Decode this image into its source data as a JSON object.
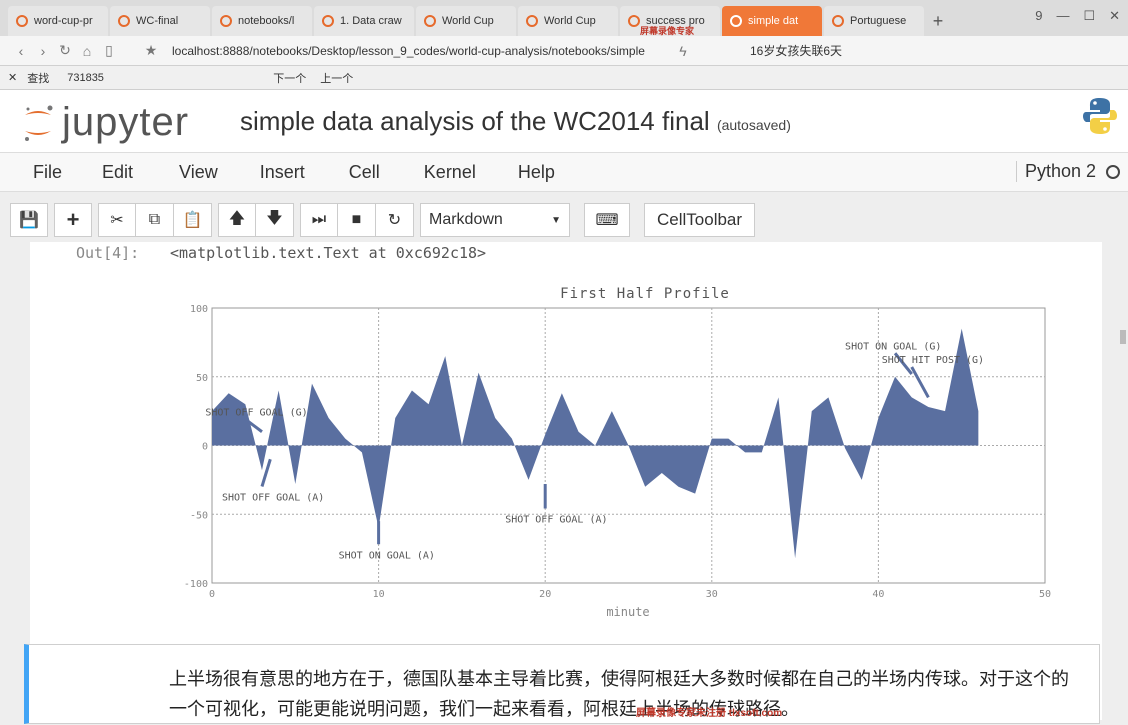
{
  "browser": {
    "tabs": [
      {
        "label": "word-cup-pr"
      },
      {
        "label": "WC-final"
      },
      {
        "label": "notebooks/l"
      },
      {
        "label": "1. Data craw"
      },
      {
        "label": "World Cup"
      },
      {
        "label": "World Cup"
      },
      {
        "label": "success pro"
      },
      {
        "label": "simple dat",
        "active": true
      },
      {
        "label": "Portuguese"
      }
    ],
    "new_tab": "+",
    "window_count": "9",
    "url": "localhost:8888/notebooks/Desktop/lesson_9_codes/world-cup-analysis/notebooks/simple",
    "news": "16岁女孩失联6天",
    "find": {
      "label": "查找",
      "value": "731835",
      "next": "下一个",
      "prev": "上一个"
    }
  },
  "jupyter": {
    "logo": "jupyter",
    "notebook_title": "simple data analysis of the WC2014 final",
    "save_status": "(autosaved)",
    "menu": [
      "File",
      "Edit",
      "View",
      "Insert",
      "Cell",
      "Kernel",
      "Help"
    ],
    "kernel_name": "Python 2",
    "cell_type": "Markdown",
    "cell_toolbar": "CellToolbar"
  },
  "output": {
    "prompt": "Out[4]:",
    "text": "<matplotlib.text.Text at 0xc692c18>"
  },
  "chart_data": {
    "type": "area",
    "title": "First Half Profile",
    "xlabel": "minute",
    "ylabel": "",
    "xlim": [
      0,
      50
    ],
    "ylim": [
      -100,
      100
    ],
    "xticks": [
      "0",
      "10",
      "20",
      "30",
      "40",
      "50"
    ],
    "yticks": [
      "100",
      "50",
      "0",
      "-50",
      "-100"
    ],
    "grid": true,
    "fill_color": "#5a6fa0",
    "x": [
      0,
      1,
      2,
      3,
      4,
      5,
      6,
      7,
      8,
      9,
      10,
      11,
      12,
      13,
      14,
      15,
      16,
      17,
      18,
      19,
      20,
      21,
      22,
      23,
      24,
      25,
      26,
      27,
      28,
      29,
      30,
      31,
      32,
      33,
      34,
      35,
      36,
      37,
      38,
      39,
      40,
      41,
      42,
      43,
      44,
      45,
      46
    ],
    "y": [
      25,
      38,
      30,
      -18,
      40,
      -28,
      45,
      20,
      5,
      -5,
      -60,
      20,
      40,
      30,
      65,
      0,
      53,
      20,
      5,
      -25,
      8,
      38,
      10,
      0,
      25,
      0,
      -30,
      -20,
      -30,
      -35,
      5,
      5,
      -5,
      -5,
      35,
      -82,
      25,
      35,
      -2,
      -25,
      20,
      50,
      35,
      28,
      25,
      85,
      25
    ],
    "annotations": [
      {
        "text": "SHOT ON GOAL (G)",
        "x": 41,
        "y": 70
      },
      {
        "text": "SHOT HIT POST (G)",
        "x": 42,
        "y": 60
      },
      {
        "text": "SHOT OFF GOAL (G)",
        "x": 2,
        "y": 22
      },
      {
        "text": "SHOT OFF GOAL (A)",
        "x": 3,
        "y": -40
      },
      {
        "text": "SHOT ON GOAL (A)",
        "x": 10,
        "y": -82
      },
      {
        "text": "SHOT OFF GOAL (A)",
        "x": 20,
        "y": -56
      }
    ]
  },
  "markdown": {
    "text": "上半场很有意思的地方在于，德国队基本主导着比赛，使得阿根廷大多数时候都在自己的半场内传球。对于这个的一个可视化，可能更能说明问题，我们一起来看看，阿根廷上半场的传球路径。"
  },
  "watermarks": [
    "屏幕录像专家",
    "屏幕录像专家未注册 tlxsoft.com"
  ]
}
